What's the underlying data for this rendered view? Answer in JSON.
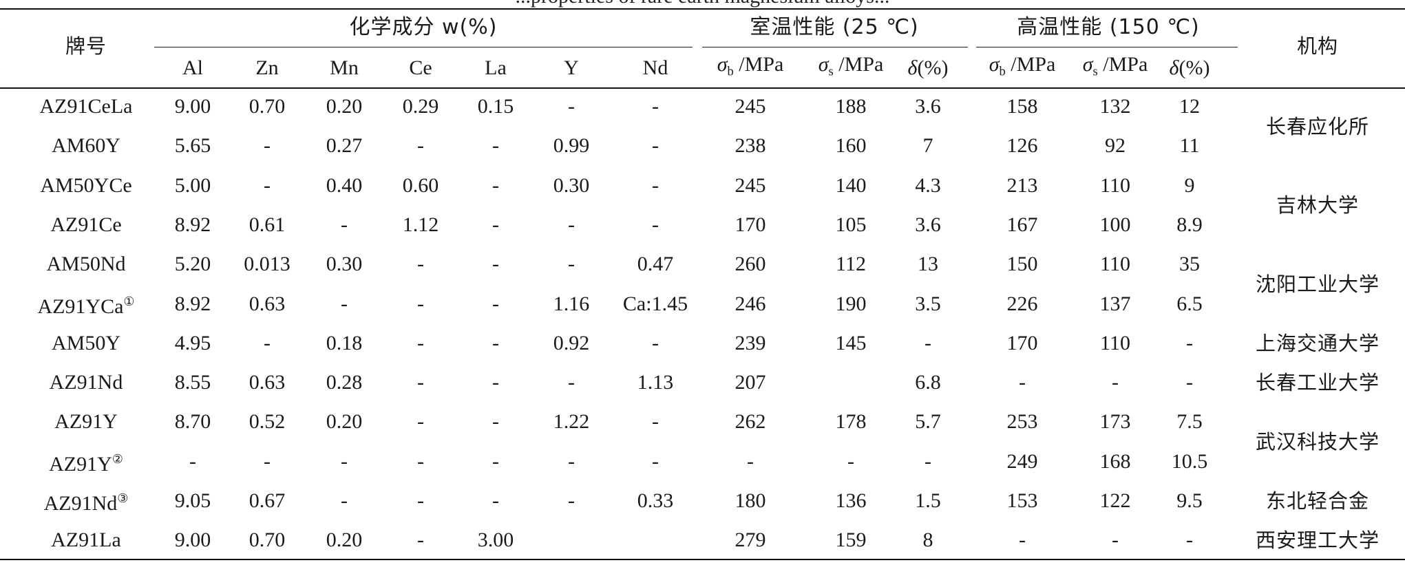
{
  "caption_fragment": "...properties of rare earth magnesium alloys...",
  "table": {
    "header": {
      "grade": "牌号",
      "chem_group": "化学成分 w(%)",
      "room_group": "室温性能 (25 ℃)",
      "high_group": "高温性能 (150 ℃)",
      "institution": "机构",
      "elements": [
        "Al",
        "Zn",
        "Mn",
        "Ce",
        "La",
        "Y",
        "Nd"
      ],
      "prop_sigma_b_sym": "σ",
      "prop_sigma_b_sub": "b",
      "prop_sigma_s_sym": "σ",
      "prop_sigma_s_sub": "s",
      "prop_unit": "/MPa",
      "prop_delta": "δ(%)"
    },
    "rows": [
      {
        "grade": "AZ91CeLa",
        "sup": "",
        "values": [
          "9.00",
          "0.70",
          "0.20",
          "0.29",
          "0.15",
          "-",
          "-",
          "245",
          "188",
          "3.6",
          "158",
          "132",
          "12"
        ]
      },
      {
        "grade": "AM60Y",
        "sup": "",
        "values": [
          "5.65",
          "-",
          "0.27",
          "-",
          "-",
          "0.99",
          "-",
          "238",
          "160",
          "7",
          "126",
          "92",
          "11"
        ]
      },
      {
        "grade": "AM50YCe",
        "sup": "",
        "values": [
          "5.00",
          "-",
          "0.40",
          "0.60",
          "-",
          "0.30",
          "-",
          "245",
          "140",
          "4.3",
          "213",
          "110",
          "9"
        ]
      },
      {
        "grade": "AZ91Ce",
        "sup": "",
        "values": [
          "8.92",
          "0.61",
          "-",
          "1.12",
          "-",
          "-",
          "-",
          "170",
          "105",
          "3.6",
          "167",
          "100",
          "8.9"
        ]
      },
      {
        "grade": "AM50Nd",
        "sup": "",
        "values": [
          "5.20",
          "0.013",
          "0.30",
          "-",
          "-",
          "-",
          "0.47",
          "260",
          "112",
          "13",
          "150",
          "110",
          "35"
        ]
      },
      {
        "grade": "AZ91YCa",
        "sup": "①",
        "values": [
          "8.92",
          "0.63",
          "-",
          "-",
          "-",
          "1.16",
          "Ca:1.45",
          "246",
          "190",
          "3.5",
          "226",
          "137",
          "6.5"
        ]
      },
      {
        "grade": "AM50Y",
        "sup": "",
        "values": [
          "4.95",
          "-",
          "0.18",
          "-",
          "-",
          "0.92",
          "-",
          "239",
          "145",
          "-",
          "170",
          "110",
          "-"
        ]
      },
      {
        "grade": "AZ91Nd",
        "sup": "",
        "values": [
          "8.55",
          "0.63",
          "0.28",
          "-",
          "-",
          "-",
          "1.13",
          "207",
          "",
          "6.8",
          "-",
          "-",
          "-"
        ]
      },
      {
        "grade": "AZ91Y",
        "sup": "",
        "values": [
          "8.70",
          "0.52",
          "0.20",
          "-",
          "-",
          "1.22",
          "-",
          "262",
          "178",
          "5.7",
          "253",
          "173",
          "7.5"
        ]
      },
      {
        "grade": "AZ91Y",
        "sup": "②",
        "values": [
          "-",
          "-",
          "-",
          "-",
          "-",
          "-",
          "-",
          "-",
          "-",
          "-",
          "249",
          "168",
          "10.5"
        ]
      },
      {
        "grade": "AZ91Nd",
        "sup": "③",
        "values": [
          "9.05",
          "0.67",
          "-",
          "-",
          "-",
          "-",
          "0.33",
          "180",
          "136",
          "1.5",
          "153",
          "122",
          "9.5"
        ]
      },
      {
        "grade": "AZ91La",
        "sup": "",
        "values": [
          "9.00",
          "0.70",
          "0.20",
          "-",
          "3.00",
          "",
          "",
          "279",
          "159",
          "8",
          "-",
          "-",
          "-"
        ]
      }
    ],
    "institutions": [
      {
        "name": "长春应化所"
      },
      {
        "name": "吉林大学"
      },
      {
        "name": "沈阳工业大学"
      },
      {
        "name": "上海交通大学"
      },
      {
        "name": "长春工业大学"
      },
      {
        "name": "武汉科技大学"
      },
      {
        "name": "东北轻合金"
      },
      {
        "name": "西安理工大学"
      }
    ]
  }
}
